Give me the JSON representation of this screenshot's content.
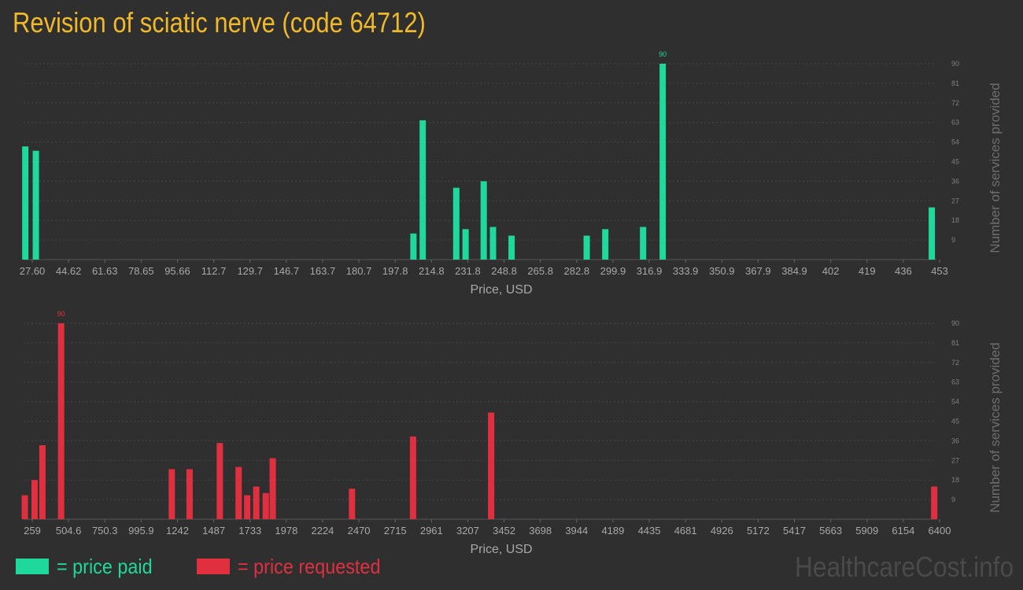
{
  "title": "Revision of sciatic nerve (code 64712)",
  "colors": {
    "paid": "#1ed99b",
    "requested": "#e0303f",
    "title": "#f0b92a"
  },
  "legend": {
    "paid": "= price paid",
    "requested": "= price requested"
  },
  "brand": "HealthcareCost.info",
  "chart_data": [
    {
      "type": "bar",
      "name": "price paid",
      "color": "#1ed99b",
      "xlabel": "Price, USD",
      "ylabel": "Number of services provided",
      "ylim": [
        0,
        90
      ],
      "xlim": [
        24.5,
        457
      ],
      "x_ticks": [
        "27.60",
        "44.62",
        "61.63",
        "78.65",
        "95.66",
        "112.7",
        "129.7",
        "146.7",
        "163.7",
        "180.7",
        "197.8",
        "214.8",
        "231.8",
        "248.8",
        "265.8",
        "282.8",
        "299.9",
        "316.9",
        "333.9",
        "350.9",
        "367.9",
        "384.9",
        "402",
        "419",
        "436",
        "453"
      ],
      "y_ticks": [
        9,
        18,
        27,
        36,
        45,
        54,
        63,
        72,
        81,
        90
      ],
      "grid": true,
      "peak_label": "90",
      "bars": [
        {
          "x": 25.3,
          "y": 52
        },
        {
          "x": 30.3,
          "y": 50
        },
        {
          "x": 209.2,
          "y": 12
        },
        {
          "x": 213.6,
          "y": 64
        },
        {
          "x": 229.5,
          "y": 33
        },
        {
          "x": 233.9,
          "y": 14
        },
        {
          "x": 242.5,
          "y": 36
        },
        {
          "x": 246.9,
          "y": 15
        },
        {
          "x": 255.7,
          "y": 11
        },
        {
          "x": 291.3,
          "y": 11
        },
        {
          "x": 300.1,
          "y": 14
        },
        {
          "x": 318.0,
          "y": 15
        },
        {
          "x": 327.3,
          "y": 90
        },
        {
          "x": 454.8,
          "y": 24
        }
      ]
    },
    {
      "type": "bar",
      "name": "price requested",
      "color": "#e0303f",
      "xlabel": "Price, USD",
      "ylabel": "Number of services provided",
      "ylim": [
        0,
        90
      ],
      "xlim": [
        251,
        6411
      ],
      "x_ticks": [
        "259",
        "504.6",
        "750.3",
        "995.9",
        "1242",
        "1487",
        "1733",
        "1978",
        "2224",
        "2470",
        "2715",
        "2961",
        "3207",
        "3452",
        "3698",
        "3944",
        "4189",
        "4435",
        "4681",
        "4926",
        "5172",
        "5417",
        "5663",
        "5909",
        "6154",
        "6400"
      ],
      "y_ticks": [
        9,
        18,
        27,
        36,
        45,
        54,
        63,
        72,
        81,
        90
      ],
      "grid": true,
      "peak_label": "90",
      "bars": [
        {
          "x": 259,
          "y": 11
        },
        {
          "x": 325,
          "y": 18
        },
        {
          "x": 378,
          "y": 34
        },
        {
          "x": 504,
          "y": 90
        },
        {
          "x": 1251,
          "y": 23
        },
        {
          "x": 1371,
          "y": 23
        },
        {
          "x": 1575,
          "y": 35
        },
        {
          "x": 1702,
          "y": 24
        },
        {
          "x": 1760,
          "y": 11
        },
        {
          "x": 1821,
          "y": 15
        },
        {
          "x": 1885,
          "y": 12
        },
        {
          "x": 1932,
          "y": 28
        },
        {
          "x": 2467,
          "y": 14
        },
        {
          "x": 2879,
          "y": 38
        },
        {
          "x": 3406,
          "y": 49
        },
        {
          "x": 6396,
          "y": 15
        }
      ]
    }
  ]
}
